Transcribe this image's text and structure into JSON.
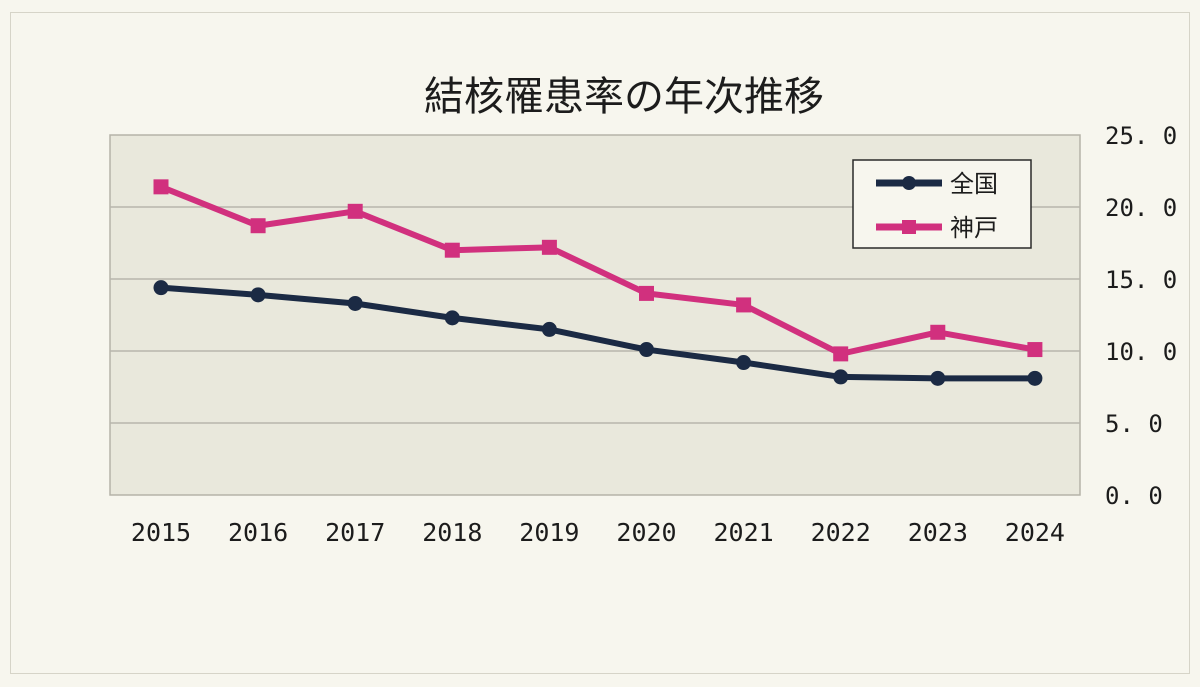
{
  "chart_data": {
    "type": "line",
    "title": "結核罹患率の年次推移",
    "categories": [
      "2015",
      "2016",
      "2017",
      "2018",
      "2019",
      "2020",
      "2021",
      "2022",
      "2023",
      "2024"
    ],
    "ylim": [
      0,
      25
    ],
    "yticks": [
      "0. 0",
      "5. 0",
      "10. 0",
      "15. 0",
      "20. 0",
      "25. 0"
    ],
    "y_axis_side": "right",
    "grid": true,
    "legend_position": "top-right",
    "series": [
      {
        "name": "全国",
        "values": [
          14.4,
          13.9,
          13.3,
          12.3,
          11.5,
          10.1,
          9.2,
          8.2,
          8.1,
          8.1
        ],
        "color": "#1b2a44",
        "marker": "circle"
      },
      {
        "name": "神戸",
        "values": [
          21.4,
          18.7,
          19.7,
          17.0,
          17.2,
          14.0,
          13.2,
          9.8,
          11.3,
          10.1
        ],
        "color": "#d1307e",
        "marker": "square"
      }
    ]
  }
}
